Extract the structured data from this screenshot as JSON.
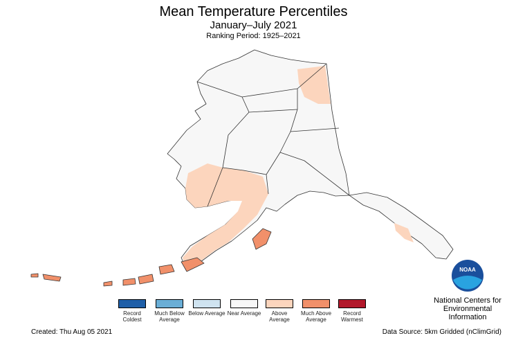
{
  "header": {
    "title": "Mean Temperature Percentiles",
    "subtitle": "January–July 2021",
    "period": "Ranking Period: 1925–2021"
  },
  "legend": [
    {
      "label": "Record Coldest",
      "color": "#1f5fa8"
    },
    {
      "label": "Much Below Average",
      "color": "#6aaed6"
    },
    {
      "label": "Below Average",
      "color": "#cfe3f0"
    },
    {
      "label": "Near Average",
      "color": "#f7f7f7"
    },
    {
      "label": "Above Average",
      "color": "#fcd5bd"
    },
    {
      "label": "Much Above Average",
      "color": "#f1906a"
    },
    {
      "label": "Record Warmest",
      "color": "#b2182b"
    }
  ],
  "logo": {
    "text": "NOAA",
    "lines": [
      "National Centers for",
      "Environmental",
      "Information"
    ]
  },
  "footer": {
    "created": "Created: Thu Aug 05 2021",
    "source": "Data Source: 5km Gridded (nClimGrid)"
  }
}
